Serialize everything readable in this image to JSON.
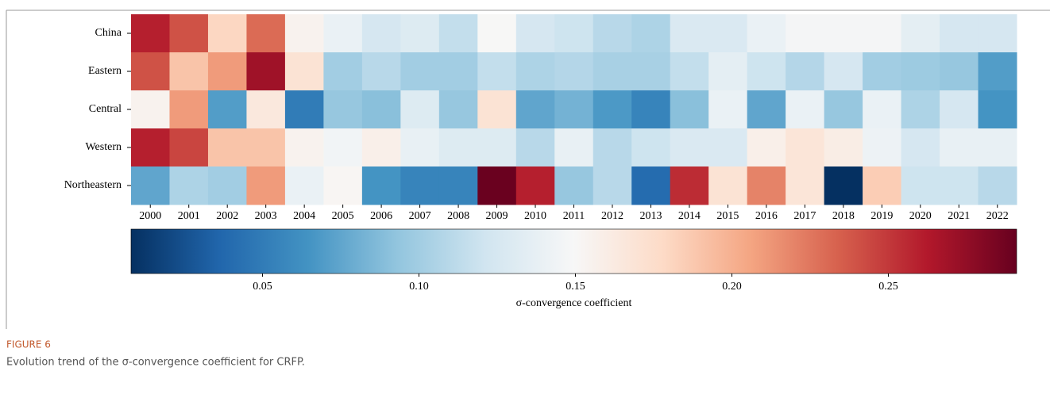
{
  "chart_data": {
    "type": "heatmap",
    "rows": [
      "China",
      "Eastern",
      "Central",
      "Western",
      "Northeastern"
    ],
    "columns": [
      "2000",
      "2001",
      "2002",
      "2003",
      "2004",
      "2005",
      "2006",
      "2007",
      "2008",
      "2009",
      "2010",
      "2011",
      "2012",
      "2013",
      "2014",
      "2015",
      "2016",
      "2017",
      "2018",
      "2019",
      "2020",
      "2021",
      "2022"
    ],
    "values": [
      [
        0.26,
        0.24,
        0.18,
        0.23,
        0.155,
        0.14,
        0.125,
        0.13,
        0.115,
        0.15,
        0.125,
        0.12,
        0.11,
        0.105,
        0.128,
        0.128,
        0.14,
        0.147,
        0.147,
        0.147,
        0.135,
        0.125,
        0.125
      ],
      [
        0.24,
        0.19,
        0.21,
        0.27,
        0.17,
        0.1,
        0.11,
        0.1,
        0.1,
        0.115,
        0.105,
        0.108,
        0.103,
        0.103,
        0.115,
        0.135,
        0.12,
        0.108,
        0.125,
        0.1,
        0.098,
        0.095,
        0.07
      ],
      [
        0.155,
        0.21,
        0.07,
        0.165,
        0.05,
        0.095,
        0.09,
        0.13,
        0.095,
        0.17,
        0.075,
        0.082,
        0.068,
        0.055,
        0.09,
        0.14,
        0.075,
        0.14,
        0.095,
        0.14,
        0.105,
        0.125,
        0.065
      ],
      [
        0.26,
        0.245,
        0.19,
        0.19,
        0.155,
        0.145,
        0.158,
        0.138,
        0.13,
        0.13,
        0.11,
        0.138,
        0.11,
        0.12,
        0.128,
        0.128,
        0.158,
        0.168,
        0.16,
        0.142,
        0.125,
        0.138,
        0.138
      ],
      [
        0.075,
        0.105,
        0.1,
        0.21,
        0.14,
        0.152,
        0.065,
        0.055,
        0.055,
        0.29,
        0.26,
        0.095,
        0.11,
        0.04,
        0.255,
        0.17,
        0.22,
        0.168,
        0.008,
        0.185,
        0.12,
        0.12,
        0.11
      ]
    ],
    "colormap": [
      "#053061",
      "#2166ac",
      "#4393c3",
      "#92c5de",
      "#d1e5f0",
      "#f7f7f7",
      "#fddbc7",
      "#f4a582",
      "#d6604d",
      "#b2182b",
      "#67001f"
    ],
    "clim": [
      0.008,
      0.291
    ],
    "colorbar_ticks": [
      0.05,
      0.1,
      0.15,
      0.2,
      0.25
    ],
    "colorbar_tick_labels": [
      "0.05",
      "0.10",
      "0.15",
      "0.20",
      "0.25"
    ],
    "colorbar_label": "σ-convergence coefficient"
  },
  "caption": {
    "label": "FIGURE 6",
    "text": "Evolution trend of the σ-convergence coefficient for CRFP."
  }
}
